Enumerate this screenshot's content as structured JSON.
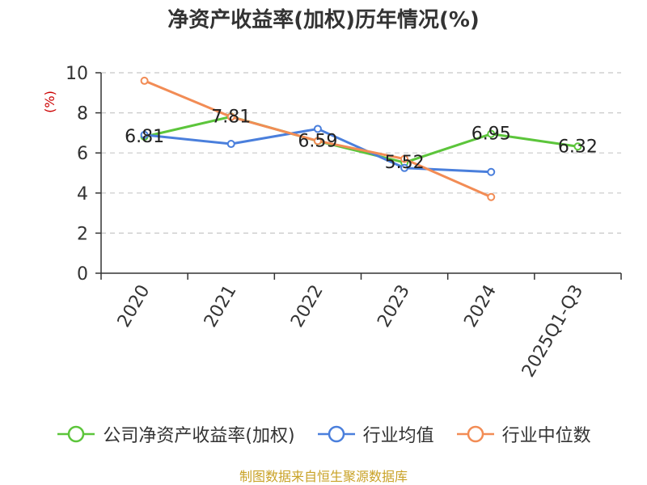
{
  "chart_data": {
    "type": "line",
    "title": "净资产收益率(加权)历年情况(%)",
    "ylabel": "(%)",
    "categories": [
      "2020",
      "2021",
      "2022",
      "2023",
      "2024",
      "2025Q1-Q3"
    ],
    "ylim": [
      0,
      10
    ],
    "yticks": [
      "0",
      "2",
      "4",
      "6",
      "8",
      "10"
    ],
    "grid": true,
    "legend_position": "bottom",
    "series": [
      {
        "name": "公司净资产收益率(加权)",
        "color": "#5cc53b",
        "values": [
          6.81,
          7.81,
          6.59,
          5.52,
          6.95,
          6.32
        ],
        "labels": [
          "6.81",
          "7.81",
          "6.59",
          "5.52",
          "6.95",
          "6.32"
        ]
      },
      {
        "name": "行业均值",
        "color": "#4a7fdc",
        "values": [
          6.9,
          6.45,
          7.2,
          5.25,
          5.05,
          null
        ]
      },
      {
        "name": "行业中位数",
        "color": "#f28c55",
        "values": [
          9.6,
          7.8,
          6.6,
          5.7,
          3.8,
          null
        ]
      }
    ]
  },
  "footer": {
    "source": "制图数据来自恒生聚源数据库"
  }
}
